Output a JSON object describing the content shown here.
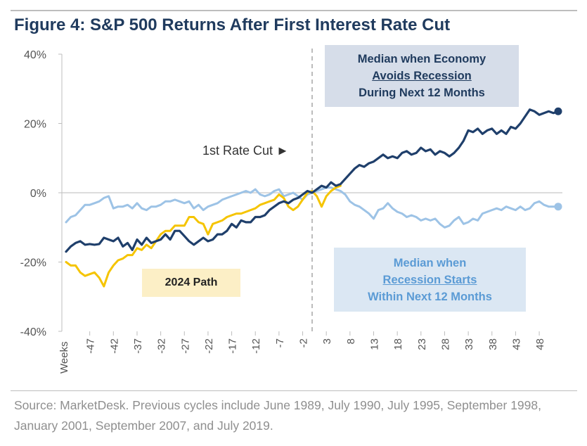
{
  "title": "Figure 4: S&P 500 Returns After First Interest Rate Cut",
  "source": "Source: MarketDesk. Previous cycles include June 1989, July 1990, July 1995, September 1998, January 2001, September 2007, and July 2019.",
  "annotations": {
    "rate_cut": "1st Rate Cut ►",
    "recovery_line1": "Median when Economy",
    "recovery_line2": "Avoids Recession",
    "recovery_line3": "During Next 12 Months",
    "recession_line1": "Median when",
    "recession_line2": "Recession Starts",
    "recession_line3": "Within Next 12 Months",
    "path_2024": "2024 Path"
  },
  "chart_data": {
    "type": "line",
    "x_axis_label": "Weeks",
    "x_ticks": [
      "-47",
      "-42",
      "-37",
      "-32",
      "-27",
      "-22",
      "-17",
      "-12",
      "-7",
      "-2",
      "3",
      "8",
      "13",
      "18",
      "23",
      "28",
      "33",
      "38",
      "43",
      "48"
    ],
    "y_ticks": [
      "40%",
      "20%",
      "0%",
      "-20%",
      "-40%"
    ],
    "ylim": [
      -40,
      40
    ],
    "xlim": [
      -52,
      52
    ],
    "vertical_marker_x": 0,
    "colors": {
      "recovery": "#1f3f6b",
      "recession": "#9dc3e6",
      "path2024": "#f5c400",
      "title": "#203b5e"
    },
    "series": [
      {
        "key": "recovery",
        "x": [
          -52,
          -51,
          -50,
          -49,
          -48,
          -47,
          -46,
          -45,
          -44,
          -43,
          -42,
          -41,
          -40,
          -39,
          -38,
          -37,
          -36,
          -35,
          -34,
          -33,
          -32,
          -31,
          -30,
          -29,
          -28,
          -27,
          -26,
          -25,
          -24,
          -23,
          -22,
          -21,
          -20,
          -19,
          -18,
          -17,
          -16,
          -15,
          -14,
          -13,
          -12,
          -11,
          -10,
          -9,
          -8,
          -7,
          -6,
          -5,
          -4,
          -3,
          -2,
          -1,
          0,
          1,
          2,
          3,
          4,
          5,
          6,
          7,
          8,
          9,
          10,
          11,
          12,
          13,
          14,
          15,
          16,
          17,
          18,
          19,
          20,
          21,
          22,
          23,
          24,
          25,
          26,
          27,
          28,
          29,
          30,
          31,
          32,
          33,
          34,
          35,
          36,
          37,
          38,
          39,
          40,
          41,
          42,
          43,
          44,
          45,
          46,
          47,
          48,
          49,
          50,
          51,
          52
        ],
        "y": [
          -17,
          -15.5,
          -14.5,
          -14,
          -15,
          -14.8,
          -15,
          -14.8,
          -13,
          -13.5,
          -14,
          -13,
          -15.5,
          -14.5,
          -16.5,
          -13.5,
          -15,
          -13,
          -14.5,
          -14,
          -13.5,
          -12,
          -13.5,
          -11,
          -11,
          -12.5,
          -14,
          -15,
          -14,
          -13,
          -14,
          -13.5,
          -12,
          -12,
          -11,
          -9,
          -10,
          -8,
          -8.5,
          -8.5,
          -7,
          -7,
          -6.5,
          -5,
          -4,
          -3,
          -2.5,
          -3,
          -2,
          -1.5,
          -0.5,
          0.5,
          0,
          1,
          2,
          1.5,
          3,
          2,
          2.5,
          4,
          5.5,
          7,
          8,
          7.5,
          8.5,
          9,
          10,
          11,
          10,
          10.5,
          10,
          11.5,
          12,
          11,
          11.5,
          13,
          12,
          12.5,
          11,
          12,
          11.5,
          10.5,
          11.5,
          13,
          15,
          18,
          17.5,
          18.5,
          17,
          18,
          18.5,
          17,
          18,
          17,
          19,
          18.5,
          20,
          22,
          24,
          23.5,
          22.5,
          23,
          23.5,
          23,
          23.5
        ]
      },
      {
        "key": "recession",
        "x": [
          -52,
          -51,
          -50,
          -49,
          -48,
          -47,
          -46,
          -45,
          -44,
          -43,
          -42,
          -41,
          -40,
          -39,
          -38,
          -37,
          -36,
          -35,
          -34,
          -33,
          -32,
          -31,
          -30,
          -29,
          -28,
          -27,
          -26,
          -25,
          -24,
          -23,
          -22,
          -21,
          -20,
          -19,
          -18,
          -17,
          -16,
          -15,
          -14,
          -13,
          -12,
          -11,
          -10,
          -9,
          -8,
          -7,
          -6,
          -5,
          -4,
          -3,
          -2,
          -1,
          0,
          1,
          2,
          3,
          4,
          5,
          6,
          7,
          8,
          9,
          10,
          11,
          12,
          13,
          14,
          15,
          16,
          17,
          18,
          19,
          20,
          21,
          22,
          23,
          24,
          25,
          26,
          27,
          28,
          29,
          30,
          31,
          32,
          33,
          34,
          35,
          36,
          37,
          38,
          39,
          40,
          41,
          42,
          43,
          44,
          45,
          46,
          47,
          48,
          49,
          50,
          51,
          52
        ],
        "y": [
          -8.5,
          -7,
          -6.5,
          -5,
          -3.5,
          -3.5,
          -3,
          -2.5,
          -1.5,
          -1,
          -4.5,
          -4,
          -4,
          -3.5,
          -4.5,
          -3,
          -4.5,
          -5,
          -4,
          -4,
          -3.5,
          -2.5,
          -2.5,
          -2,
          -2.5,
          -3,
          -2.5,
          -4.5,
          -3.5,
          -5,
          -4,
          -3.5,
          -3,
          -2,
          -1.5,
          -1,
          -0.5,
          0,
          0.5,
          0,
          1,
          -0.5,
          -1,
          -0.5,
          0.5,
          1,
          -1,
          -0.5,
          0,
          -1,
          -2,
          -0.5,
          0,
          0.5,
          1,
          1.5,
          1.5,
          1,
          0.5,
          -0.5,
          -2.5,
          -3.5,
          -4,
          -5,
          -6,
          -7.5,
          -5,
          -4.5,
          -3,
          -4.5,
          -5.5,
          -6,
          -7,
          -6.5,
          -7,
          -8,
          -7.5,
          -8,
          -7.5,
          -9,
          -10,
          -9.5,
          -8,
          -7,
          -9,
          -8.5,
          -7.5,
          -8,
          -6,
          -5.5,
          -5,
          -4.5,
          -5,
          -4,
          -4.5,
          -5,
          -4,
          -5,
          -4.5,
          -3,
          -2.5,
          -3.5,
          -4,
          -4,
          -4
        ]
      },
      {
        "key": "path2024",
        "x": [
          -52,
          -51,
          -50,
          -49,
          -48,
          -47,
          -46,
          -45,
          -44,
          -43,
          -42,
          -41,
          -40,
          -39,
          -38,
          -37,
          -36,
          -35,
          -34,
          -33,
          -32,
          -31,
          -30,
          -29,
          -28,
          -27,
          -26,
          -25,
          -24,
          -23,
          -22,
          -21,
          -20,
          -19,
          -18,
          -17,
          -16,
          -15,
          -14,
          -13,
          -12,
          -11,
          -10,
          -9,
          -8,
          -7,
          -6,
          -5,
          -4,
          -3,
          -2,
          -1,
          0,
          1,
          2,
          3,
          4,
          5,
          6
        ],
        "y": [
          -20,
          -21,
          -21,
          -23,
          -24,
          -23.5,
          -23,
          -24.5,
          -27,
          -23,
          -21,
          -19.5,
          -19,
          -18,
          -18,
          -16,
          -16.5,
          -15,
          -16,
          -14,
          -12,
          -11,
          -11,
          -9.5,
          -9.5,
          -9.5,
          -7,
          -7,
          -8.5,
          -9,
          -12,
          -9,
          -8.5,
          -8,
          -7,
          -6.5,
          -6,
          -6,
          -5.5,
          -5,
          -4.5,
          -3.5,
          -3,
          -2.5,
          -2,
          -0.5,
          -1.5,
          -4,
          -5,
          -4,
          -2,
          0,
          0.5,
          -1,
          -4,
          -1,
          0.5,
          1.5,
          2
        ]
      }
    ]
  }
}
